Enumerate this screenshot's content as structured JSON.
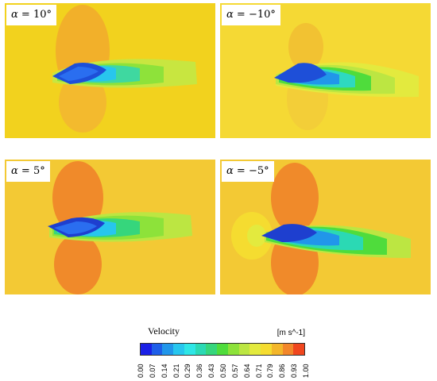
{
  "panels": [
    {
      "label_prefix": "α = ",
      "label_value": "10°"
    },
    {
      "label_prefix": "α = ",
      "label_value": "−10°"
    },
    {
      "label_prefix": "α = ",
      "label_value": "5°"
    },
    {
      "label_prefix": "α = ",
      "label_value": "−5°"
    }
  ],
  "legend": {
    "title": "Velocity",
    "unit": "[m s^-1]",
    "ticks": [
      "0.00",
      "0.07",
      "0.14",
      "0.21",
      "0.29",
      "0.36",
      "0.43",
      "0.50",
      "0.57",
      "0.64",
      "0.71",
      "0.79",
      "0.86",
      "0.93",
      "1.00"
    ],
    "colors": [
      "#1a20e6",
      "#1e5ee8",
      "#2196ea",
      "#27c6ee",
      "#2ee6e6",
      "#2bd9b4",
      "#36d67c",
      "#4fdc3c",
      "#8de23a",
      "#bce642",
      "#e3ea3e",
      "#f5dc30",
      "#f3b62a",
      "#f2862a",
      "#f0461e"
    ]
  }
}
